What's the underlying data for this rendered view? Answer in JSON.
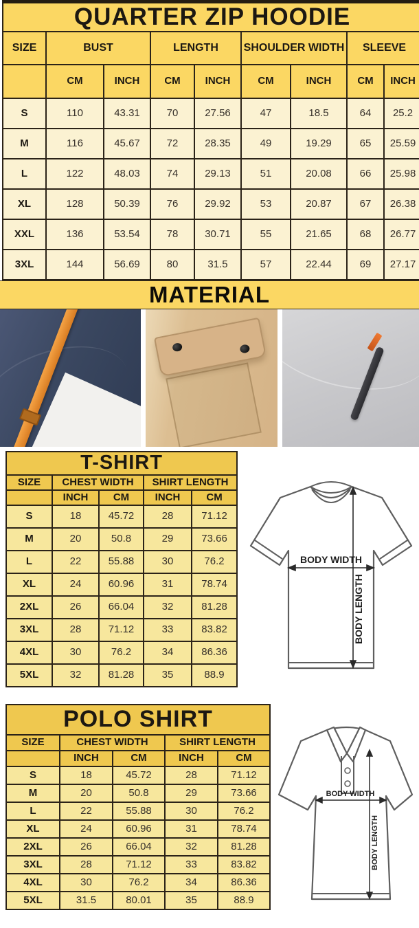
{
  "hoodie": {
    "title": "QUARTER ZIP HOODIE",
    "size_header": "SIZE",
    "groups": [
      {
        "label": "BUST"
      },
      {
        "label": "LENGTH"
      },
      {
        "label": "SHOULDER WIDTH"
      },
      {
        "label": "SLEEVE"
      }
    ],
    "units": [
      "CM",
      "INCH",
      "CM",
      "INCH",
      "CM",
      "INCH",
      "CM",
      "INCH"
    ],
    "rows": [
      {
        "size": "S",
        "values": [
          "110",
          "43.31",
          "70",
          "27.56",
          "47",
          "18.5",
          "64",
          "25.2"
        ]
      },
      {
        "size": "M",
        "values": [
          "116",
          "45.67",
          "72",
          "28.35",
          "49",
          "19.29",
          "65",
          "25.59"
        ]
      },
      {
        "size": "L",
        "values": [
          "122",
          "48.03",
          "74",
          "29.13",
          "51",
          "20.08",
          "66",
          "25.98"
        ]
      },
      {
        "size": "XL",
        "values": [
          "128",
          "50.39",
          "76",
          "29.92",
          "53",
          "20.87",
          "67",
          "26.38"
        ]
      },
      {
        "size": "XXL",
        "values": [
          "136",
          "53.54",
          "78",
          "30.71",
          "55",
          "21.65",
          "68",
          "26.77"
        ]
      },
      {
        "size": "3XL",
        "values": [
          "144",
          "56.69",
          "80",
          "31.5",
          "57",
          "22.44",
          "69",
          "27.17"
        ]
      }
    ]
  },
  "material": {
    "title": "MATERIAL",
    "photos": [
      {
        "name": "navy fleece with orange drawstring"
      },
      {
        "name": "khaki flap pocket with snap buttons"
      },
      {
        "name": "grey fleece with zip pocket and orange pull"
      }
    ]
  },
  "tshirt": {
    "title": "T-SHIRT",
    "size_header": "SIZE",
    "groups": [
      {
        "label": "CHEST WIDTH"
      },
      {
        "label": "SHIRT LENGTH"
      }
    ],
    "units": [
      "INCH",
      "CM",
      "INCH",
      "CM"
    ],
    "rows": [
      {
        "size": "S",
        "values": [
          "18",
          "45.72",
          "28",
          "71.12"
        ]
      },
      {
        "size": "M",
        "values": [
          "20",
          "50.8",
          "29",
          "73.66"
        ]
      },
      {
        "size": "L",
        "values": [
          "22",
          "55.88",
          "30",
          "76.2"
        ]
      },
      {
        "size": "XL",
        "values": [
          "24",
          "60.96",
          "31",
          "78.74"
        ]
      },
      {
        "size": "2XL",
        "values": [
          "26",
          "66.04",
          "32",
          "81.28"
        ]
      },
      {
        "size": "3XL",
        "values": [
          "28",
          "71.12",
          "33",
          "83.82"
        ]
      },
      {
        "size": "4XL",
        "values": [
          "30",
          "76.2",
          "34",
          "86.36"
        ]
      },
      {
        "size": "5XL",
        "values": [
          "32",
          "81.28",
          "35",
          "88.9"
        ]
      }
    ]
  },
  "polo": {
    "title": "POLO SHIRT",
    "size_header": "SIZE",
    "groups": [
      {
        "label": "CHEST WIDTH"
      },
      {
        "label": "SHIRT LENGTH"
      }
    ],
    "units": [
      "INCH",
      "CM",
      "INCH",
      "CM"
    ],
    "rows": [
      {
        "size": "S",
        "values": [
          "18",
          "45.72",
          "28",
          "71.12"
        ]
      },
      {
        "size": "M",
        "values": [
          "20",
          "50.8",
          "29",
          "73.66"
        ]
      },
      {
        "size": "L",
        "values": [
          "22",
          "55.88",
          "30",
          "76.2"
        ]
      },
      {
        "size": "XL",
        "values": [
          "24",
          "60.96",
          "31",
          "78.74"
        ]
      },
      {
        "size": "2XL",
        "values": [
          "26",
          "66.04",
          "32",
          "81.28"
        ]
      },
      {
        "size": "3XL",
        "values": [
          "28",
          "71.12",
          "33",
          "83.82"
        ]
      },
      {
        "size": "4XL",
        "values": [
          "30",
          "76.2",
          "34",
          "86.36"
        ]
      },
      {
        "size": "5XL",
        "values": [
          "31.5",
          "80.01",
          "35",
          "88.9"
        ]
      }
    ]
  },
  "diagram": {
    "width_label": "BODY WIDTH",
    "length_label": "BODY LENGTH"
  },
  "colors": {
    "header_yellow": "#fbd763",
    "hoodie_row_cream": "#fbf2d2",
    "small_header_gold": "#efc84f",
    "small_row_gold": "#f7e79d",
    "table_line": "#2b2318",
    "strap_orange": "#e8903a",
    "zip_pull_orange": "#e06a2c"
  },
  "chart_data": [
    {
      "type": "table",
      "title": "QUARTER ZIP HOODIE",
      "columns": [
        "SIZE",
        "BUST CM",
        "BUST INCH",
        "LENGTH CM",
        "LENGTH INCH",
        "SHOULDER WIDTH CM",
        "SHOULDER WIDTH INCH",
        "SLEEVE CM",
        "SLEEVE INCH"
      ],
      "rows": [
        [
          "S",
          "110",
          "43.31",
          "70",
          "27.56",
          "47",
          "18.5",
          "64",
          "25.2"
        ],
        [
          "M",
          "116",
          "45.67",
          "72",
          "28.35",
          "49",
          "19.29",
          "65",
          "25.59"
        ],
        [
          "L",
          "122",
          "48.03",
          "74",
          "29.13",
          "51",
          "20.08",
          "66",
          "25.98"
        ],
        [
          "XL",
          "128",
          "50.39",
          "76",
          "29.92",
          "53",
          "20.87",
          "67",
          "26.38"
        ],
        [
          "XXL",
          "136",
          "53.54",
          "78",
          "30.71",
          "55",
          "21.65",
          "68",
          "26.77"
        ],
        [
          "3XL",
          "144",
          "56.69",
          "80",
          "31.5",
          "57",
          "22.44",
          "69",
          "27.17"
        ]
      ]
    },
    {
      "type": "table",
      "title": "T-SHIRT",
      "columns": [
        "SIZE",
        "CHEST WIDTH INCH",
        "CHEST WIDTH CM",
        "SHIRT LENGTH INCH",
        "SHIRT LENGTH CM"
      ],
      "rows": [
        [
          "S",
          "18",
          "45.72",
          "28",
          "71.12"
        ],
        [
          "M",
          "20",
          "50.8",
          "29",
          "73.66"
        ],
        [
          "L",
          "22",
          "55.88",
          "30",
          "76.2"
        ],
        [
          "XL",
          "24",
          "60.96",
          "31",
          "78.74"
        ],
        [
          "2XL",
          "26",
          "66.04",
          "32",
          "81.28"
        ],
        [
          "3XL",
          "28",
          "71.12",
          "33",
          "83.82"
        ],
        [
          "4XL",
          "30",
          "76.2",
          "34",
          "86.36"
        ],
        [
          "5XL",
          "32",
          "81.28",
          "35",
          "88.9"
        ]
      ]
    },
    {
      "type": "table",
      "title": "POLO SHIRT",
      "columns": [
        "SIZE",
        "CHEST WIDTH INCH",
        "CHEST WIDTH CM",
        "SHIRT LENGTH INCH",
        "SHIRT LENGTH CM"
      ],
      "rows": [
        [
          "S",
          "18",
          "45.72",
          "28",
          "71.12"
        ],
        [
          "M",
          "20",
          "50.8",
          "29",
          "73.66"
        ],
        [
          "L",
          "22",
          "55.88",
          "30",
          "76.2"
        ],
        [
          "XL",
          "24",
          "60.96",
          "31",
          "78.74"
        ],
        [
          "2XL",
          "26",
          "66.04",
          "32",
          "81.28"
        ],
        [
          "3XL",
          "28",
          "71.12",
          "33",
          "83.82"
        ],
        [
          "4XL",
          "30",
          "76.2",
          "34",
          "86.36"
        ],
        [
          "5XL",
          "31.5",
          "80.01",
          "35",
          "88.9"
        ]
      ]
    }
  ]
}
